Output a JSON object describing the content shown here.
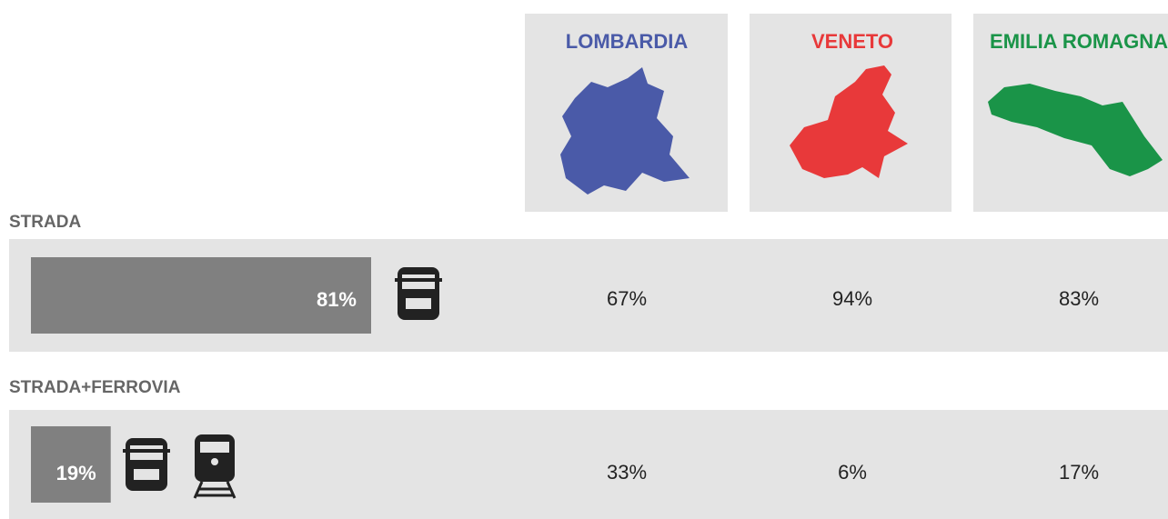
{
  "regions": [
    {
      "name": "LOMBARDIA",
      "color": "#4a5aa8"
    },
    {
      "name": "VENETO",
      "color": "#e8393a"
    },
    {
      "name": "EMILIA ROMAGNA",
      "color": "#1a9448"
    }
  ],
  "rows": [
    {
      "name": "STRADA",
      "total": 81,
      "total_label": "81%",
      "values": [
        67,
        94,
        83
      ],
      "value_labels": [
        "67%",
        "94%",
        "83%"
      ]
    },
    {
      "name": "STRADA+FERROVIA",
      "total": 19,
      "total_label": "19%",
      "values": [
        33,
        6,
        17
      ],
      "value_labels": [
        "33%",
        "6%",
        "17%"
      ]
    }
  ]
}
